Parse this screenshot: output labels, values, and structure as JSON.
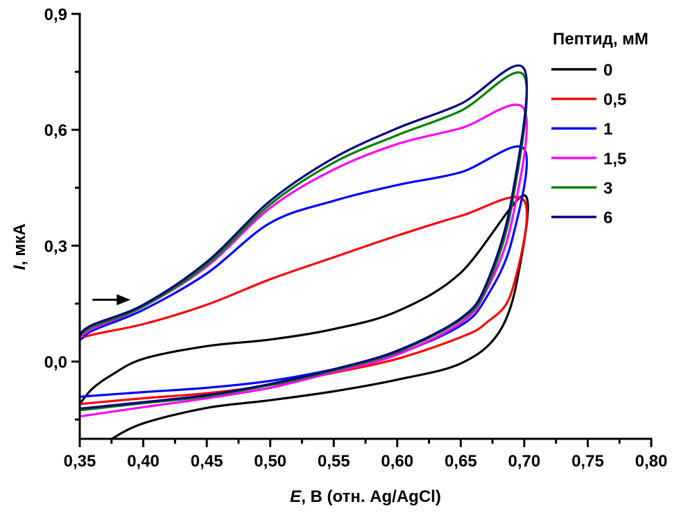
{
  "chart_data": {
    "type": "line",
    "xlabel_italic": "E",
    "xlabel_rest": ", В (отн. Ag/AgCl)",
    "ylabel_italic": "I",
    "ylabel_rest": ", мкА",
    "xlim": [
      0.35,
      0.8
    ],
    "ylim": [
      -0.2,
      0.9
    ],
    "x_ticks": [
      "0,35",
      "0,40",
      "0,45",
      "0,50",
      "0,55",
      "0,60",
      "0,65",
      "0,70",
      "0,75",
      "0,80"
    ],
    "x_tick_values": [
      0.35,
      0.4,
      0.45,
      0.5,
      0.55,
      0.6,
      0.65,
      0.7,
      0.75,
      0.8
    ],
    "y_ticks": [
      "0,0",
      "0,3",
      "0,6",
      "0,9"
    ],
    "y_tick_values": [
      0.0,
      0.3,
      0.6,
      0.9
    ],
    "grid": false,
    "legend": {
      "title": "Пептид, мМ",
      "placement": "top-right"
    },
    "arrow": {
      "from": [
        0.36,
        0.16
      ],
      "to": [
        0.39,
        0.16
      ],
      "meaning": "scan direction"
    },
    "series": [
      {
        "name": "0",
        "color": "#000000",
        "x": [
          0.35,
          0.36,
          0.375,
          0.4,
          0.45,
          0.5,
          0.55,
          0.6,
          0.65,
          0.7,
          0.695,
          0.68,
          0.65,
          0.6,
          0.55,
          0.5,
          0.45,
          0.4,
          0.375
        ],
        "y": [
          -0.11,
          -0.07,
          -0.035,
          0.007,
          0.04,
          0.057,
          0.084,
          0.13,
          0.23,
          0.43,
          0.22,
          0.075,
          -0.005,
          -0.047,
          -0.077,
          -0.1,
          -0.12,
          -0.16,
          -0.2
        ]
      },
      {
        "name": "0,5",
        "color": "#ff0000",
        "x": [
          0.35,
          0.355,
          0.4,
          0.45,
          0.5,
          0.55,
          0.6,
          0.65,
          0.7,
          0.69,
          0.67,
          0.65,
          0.6,
          0.55,
          0.5,
          0.45,
          0.4,
          0.35
        ],
        "y": [
          0.04,
          0.065,
          0.097,
          0.147,
          0.213,
          0.27,
          0.326,
          0.377,
          0.416,
          0.18,
          0.1,
          0.063,
          0.007,
          -0.029,
          -0.061,
          -0.082,
          -0.095,
          -0.11
        ]
      },
      {
        "name": "1",
        "color": "#0000ff",
        "x": [
          0.35,
          0.36,
          0.4,
          0.45,
          0.5,
          0.55,
          0.6,
          0.65,
          0.7,
          0.69,
          0.67,
          0.65,
          0.6,
          0.55,
          0.5,
          0.45,
          0.4,
          0.35
        ],
        "y": [
          0.055,
          0.08,
          0.134,
          0.228,
          0.359,
          0.416,
          0.457,
          0.49,
          0.55,
          0.31,
          0.165,
          0.093,
          0.02,
          -0.02,
          -0.05,
          -0.068,
          -0.079,
          -0.091
        ]
      },
      {
        "name": "1,5",
        "color": "#ff00ff",
        "x": [
          0.35,
          0.36,
          0.4,
          0.45,
          0.5,
          0.55,
          0.6,
          0.65,
          0.7,
          0.69,
          0.67,
          0.65,
          0.6,
          0.55,
          0.5,
          0.45,
          0.4,
          0.35
        ],
        "y": [
          0.06,
          0.085,
          0.142,
          0.246,
          0.398,
          0.497,
          0.563,
          0.604,
          0.653,
          0.36,
          0.183,
          0.1,
          0.018,
          -0.027,
          -0.068,
          -0.095,
          -0.118,
          -0.142
        ]
      },
      {
        "name": "3",
        "color": "#008000",
        "x": [
          0.35,
          0.36,
          0.4,
          0.45,
          0.5,
          0.55,
          0.6,
          0.65,
          0.7,
          0.69,
          0.67,
          0.65,
          0.6,
          0.55,
          0.5,
          0.45,
          0.4,
          0.35
        ],
        "y": [
          0.065,
          0.09,
          0.143,
          0.251,
          0.407,
          0.515,
          0.586,
          0.649,
          0.739,
          0.4,
          0.19,
          0.108,
          0.025,
          -0.023,
          -0.061,
          -0.09,
          -0.108,
          -0.126
        ]
      },
      {
        "name": "6",
        "color": "#000080",
        "x": [
          0.35,
          0.36,
          0.4,
          0.45,
          0.5,
          0.55,
          0.6,
          0.65,
          0.7,
          0.69,
          0.67,
          0.65,
          0.6,
          0.55,
          0.5,
          0.45,
          0.4,
          0.35
        ],
        "y": [
          0.07,
          0.095,
          0.147,
          0.258,
          0.416,
          0.527,
          0.604,
          0.667,
          0.757,
          0.42,
          0.2,
          0.112,
          0.028,
          -0.02,
          -0.058,
          -0.087,
          -0.105,
          -0.122
        ]
      }
    ]
  }
}
